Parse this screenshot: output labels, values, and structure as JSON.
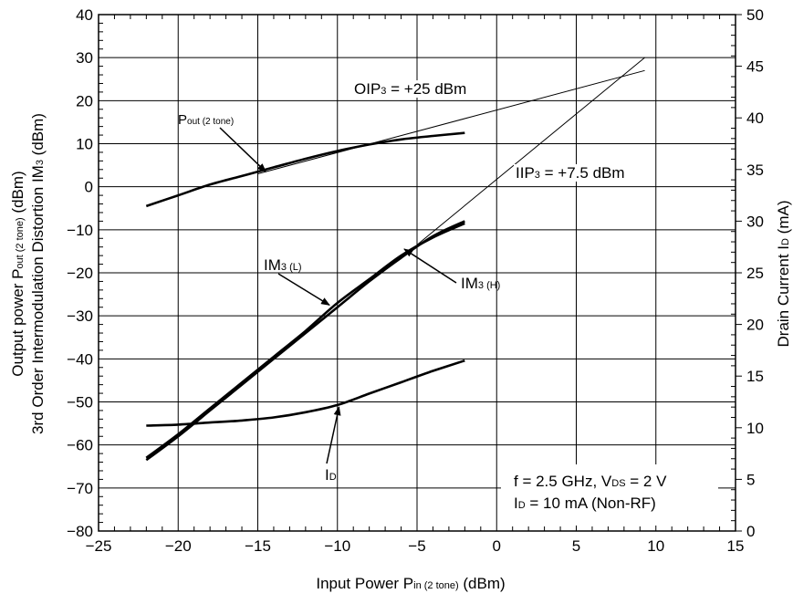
{
  "chart_data": {
    "type": "line",
    "xlabel": {
      "main": "Input Power  P",
      "sub": "in (2 tone)",
      "tail": " (dBm)"
    },
    "ylabel_left": {
      "line1": {
        "main": "Output power  P",
        "sub": "out (2 tone)",
        "tail": " (dBm)"
      },
      "line2": {
        "main": "3rd Order Intermodulation Distortion  IM",
        "sub": "3",
        "tail": " (dBm)"
      }
    },
    "ylabel_right": {
      "main": "Drain Current  I",
      "sub": "D",
      "tail": " (mA)"
    },
    "xlim": [
      -25,
      15
    ],
    "ylim_left": [
      -80,
      40
    ],
    "ylim_right": [
      0,
      50
    ],
    "x_ticks": [
      -25,
      -20,
      -15,
      -10,
      -5,
      0,
      5,
      10,
      15
    ],
    "x_tick_labels": [
      "−25",
      "−20",
      "−15",
      "−10",
      "−5",
      "0",
      "5",
      "10",
      "15"
    ],
    "y_left_ticks": [
      -80,
      -70,
      -60,
      -50,
      -40,
      -30,
      -20,
      -10,
      0,
      10,
      20,
      30,
      40
    ],
    "y_left_tick_labels": [
      "−80",
      "−70",
      "−60",
      "−50",
      "−40",
      "−30",
      "−20",
      "−10",
      "0",
      "10",
      "20",
      "30",
      "40"
    ],
    "y_right_ticks": [
      0,
      5,
      10,
      15,
      20,
      25,
      30,
      35,
      40,
      45,
      50
    ],
    "y_right_tick_labels": [
      "0",
      "5",
      "10",
      "15",
      "20",
      "25",
      "30",
      "35",
      "40",
      "45",
      "50"
    ],
    "grid": true,
    "series": [
      {
        "name": "Pout (2 tone)",
        "axis": "left",
        "x": [
          -22,
          -20,
          -18,
          -16,
          -14,
          -12,
          -10,
          -8,
          -6,
          -4,
          -2
        ],
        "y": [
          -4.5,
          -2.0,
          0.5,
          2.5,
          4.5,
          6.5,
          8.3,
          9.8,
          11.0,
          11.8,
          12.5
        ]
      },
      {
        "name": "IM3 (L)",
        "axis": "left",
        "x": [
          -22,
          -20,
          -18,
          -16,
          -14,
          -12,
          -10,
          -8,
          -6,
          -4,
          -2
        ],
        "y": [
          -63.5,
          -58.0,
          -52.0,
          -46.0,
          -40.0,
          -34.0,
          -28.0,
          -22.0,
          -16.5,
          -11.5,
          -8.0
        ]
      },
      {
        "name": "IM3 (H)",
        "axis": "left",
        "x": [
          -22,
          -20,
          -18,
          -16,
          -14,
          -12,
          -10,
          -8,
          -6,
          -4,
          -2
        ],
        "y": [
          -63.0,
          -57.5,
          -51.5,
          -45.5,
          -39.5,
          -33.5,
          -27.0,
          -21.5,
          -16.0,
          -11.8,
          -8.5
        ]
      },
      {
        "name": "ID",
        "axis": "right",
        "x": [
          -22,
          -20,
          -18,
          -16,
          -14,
          -12,
          -10,
          -8,
          -6,
          -4,
          -2
        ],
        "y": [
          10.2,
          10.3,
          10.5,
          10.7,
          11.0,
          11.5,
          12.2,
          13.3,
          14.4,
          15.5,
          16.5
        ]
      }
    ],
    "extrapolation_lines": [
      {
        "x": [
          -15,
          9.3
        ],
        "y": [
          3.0,
          27.0
        ]
      },
      {
        "x": [
          -5,
          9.3
        ],
        "y": [
          -13.5,
          30.0
        ]
      }
    ],
    "annotations": [
      {
        "id": "pout",
        "main": "P",
        "sub": "out (2 tone)",
        "tail": ""
      },
      {
        "id": "oip3",
        "main": "OIP",
        "sub": "3",
        "tail": " = +25 dBm"
      },
      {
        "id": "iip3",
        "main": "IIP",
        "sub": "3",
        "tail": " = +7.5 dBm"
      },
      {
        "id": "im3l",
        "main": "IM",
        "sub": "3 (L)",
        "tail": ""
      },
      {
        "id": "im3h",
        "main": "IM",
        "sub": "3 (H)",
        "tail": ""
      },
      {
        "id": "id",
        "main": "I",
        "sub": "D",
        "tail": ""
      }
    ],
    "conditions": [
      [
        {
          "t": "f = 2.5 GHz, V"
        },
        {
          "t": "DS",
          "sub": true
        },
        {
          "t": " = 2 V"
        }
      ],
      [
        {
          "t": "I"
        },
        {
          "t": "D",
          "sub": true
        },
        {
          "t": " = 10 mA (Non-RF)"
        }
      ]
    ]
  }
}
